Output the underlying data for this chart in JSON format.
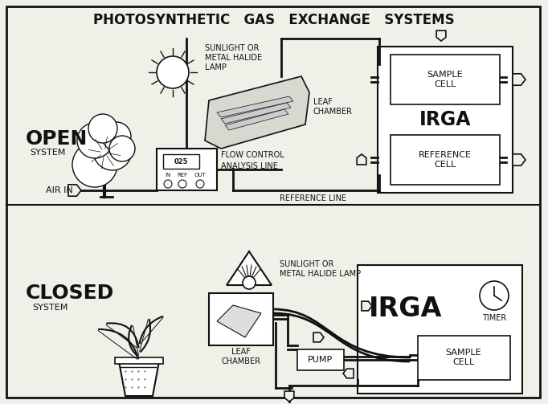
{
  "title": "PHOTOSYNTHETIC   GAS   EXCHANGE   SYSTEMS",
  "bg_color": "#f0efe8",
  "line_color": "#111111",
  "figsize": [
    6.82,
    5.03
  ],
  "dpi": 100,
  "open_label": "OPEN",
  "open_sub": "SYSTEM",
  "closed_label": "CLOSED",
  "closed_sub": "SYSTEM",
  "irga_top_label": "IRGA",
  "sample_cell_top": "SAMPLE\nCELL",
  "ref_cell_top": "REFERENCE\nCELL",
  "flow_ctrl": "FLOW CONTROL",
  "analysis_line": "ANALYSIS LINE",
  "ref_line": "REFERENCE LINE",
  "air_in": "AIR IN",
  "leaf_chamber_open": "LEAF\nCHAMBER",
  "sun_open": "SUNLIGHT OR\nMETAL HALIDE\nLAMP",
  "sun_closed": "SUNLIGHT OR\nMETAL HALIDE LAMP",
  "leaf_chamber_closed": "LEAF\nCHAMBER",
  "pump_label": "PUMP",
  "timer_label": "TIMER",
  "irga_closed_label": "IRGA",
  "sample_cell_closed": "SAMPLE\nCELL"
}
